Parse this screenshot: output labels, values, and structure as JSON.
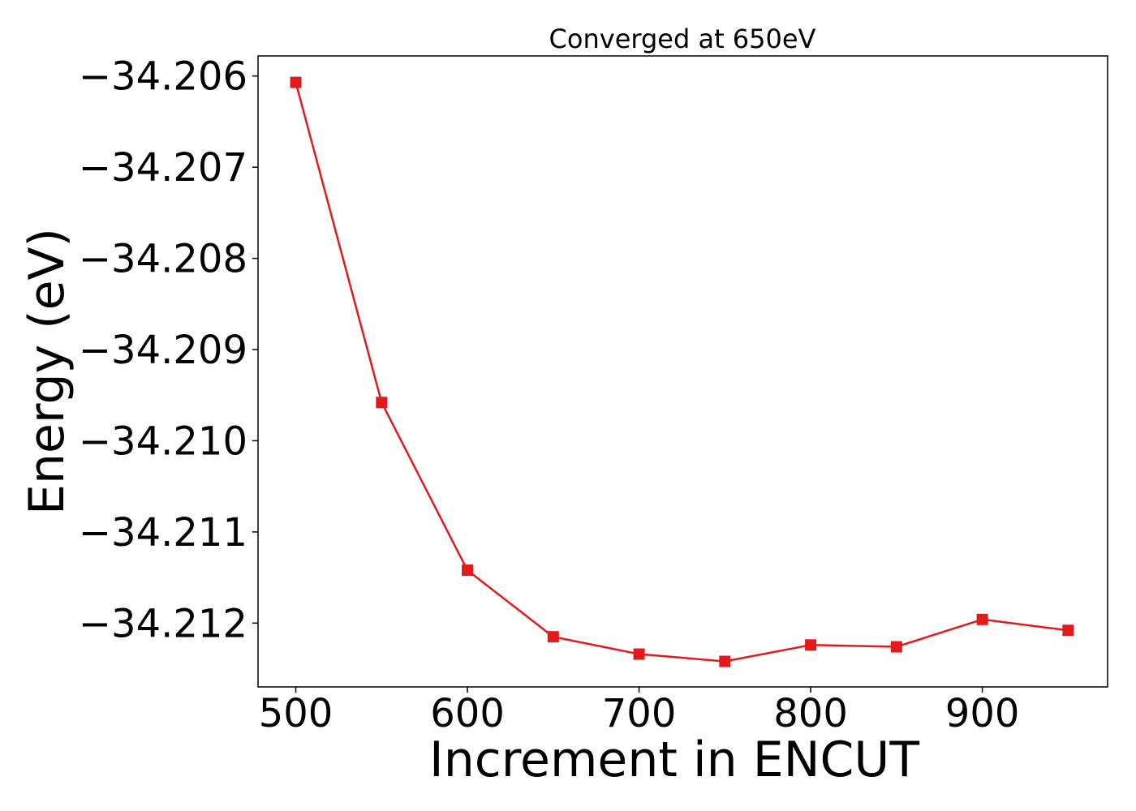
{
  "chart_data": {
    "type": "line",
    "title": "Converged at 650eV",
    "xlabel": "Increment in ENCUT",
    "ylabel": "Energy (eV)",
    "x": [
      500,
      550,
      600,
      650,
      700,
      750,
      800,
      850,
      900,
      950
    ],
    "series": [
      {
        "values": [
          -34.20607,
          -34.20958,
          -34.21142,
          -34.21215,
          -34.21234,
          -34.21242,
          -34.21224,
          -34.21226,
          -34.21196,
          -34.21208
        ],
        "color": "#e31a1c",
        "marker": "square"
      }
    ],
    "xlim": [
      478,
      973
    ],
    "ylim": [
      -34.2127,
      -34.20578
    ],
    "xticks": [
      500,
      600,
      700,
      800,
      900
    ],
    "xtick_labels": [
      "500",
      "600",
      "700",
      "800",
      "900"
    ],
    "yticks": [
      -34.206,
      -34.207,
      -34.208,
      -34.209,
      -34.21,
      -34.211,
      -34.212
    ],
    "ytick_labels": [
      "−34.206",
      "−34.207",
      "−34.208",
      "−34.209",
      "−34.210",
      "−34.211",
      "−34.212"
    ],
    "grid": false
  }
}
